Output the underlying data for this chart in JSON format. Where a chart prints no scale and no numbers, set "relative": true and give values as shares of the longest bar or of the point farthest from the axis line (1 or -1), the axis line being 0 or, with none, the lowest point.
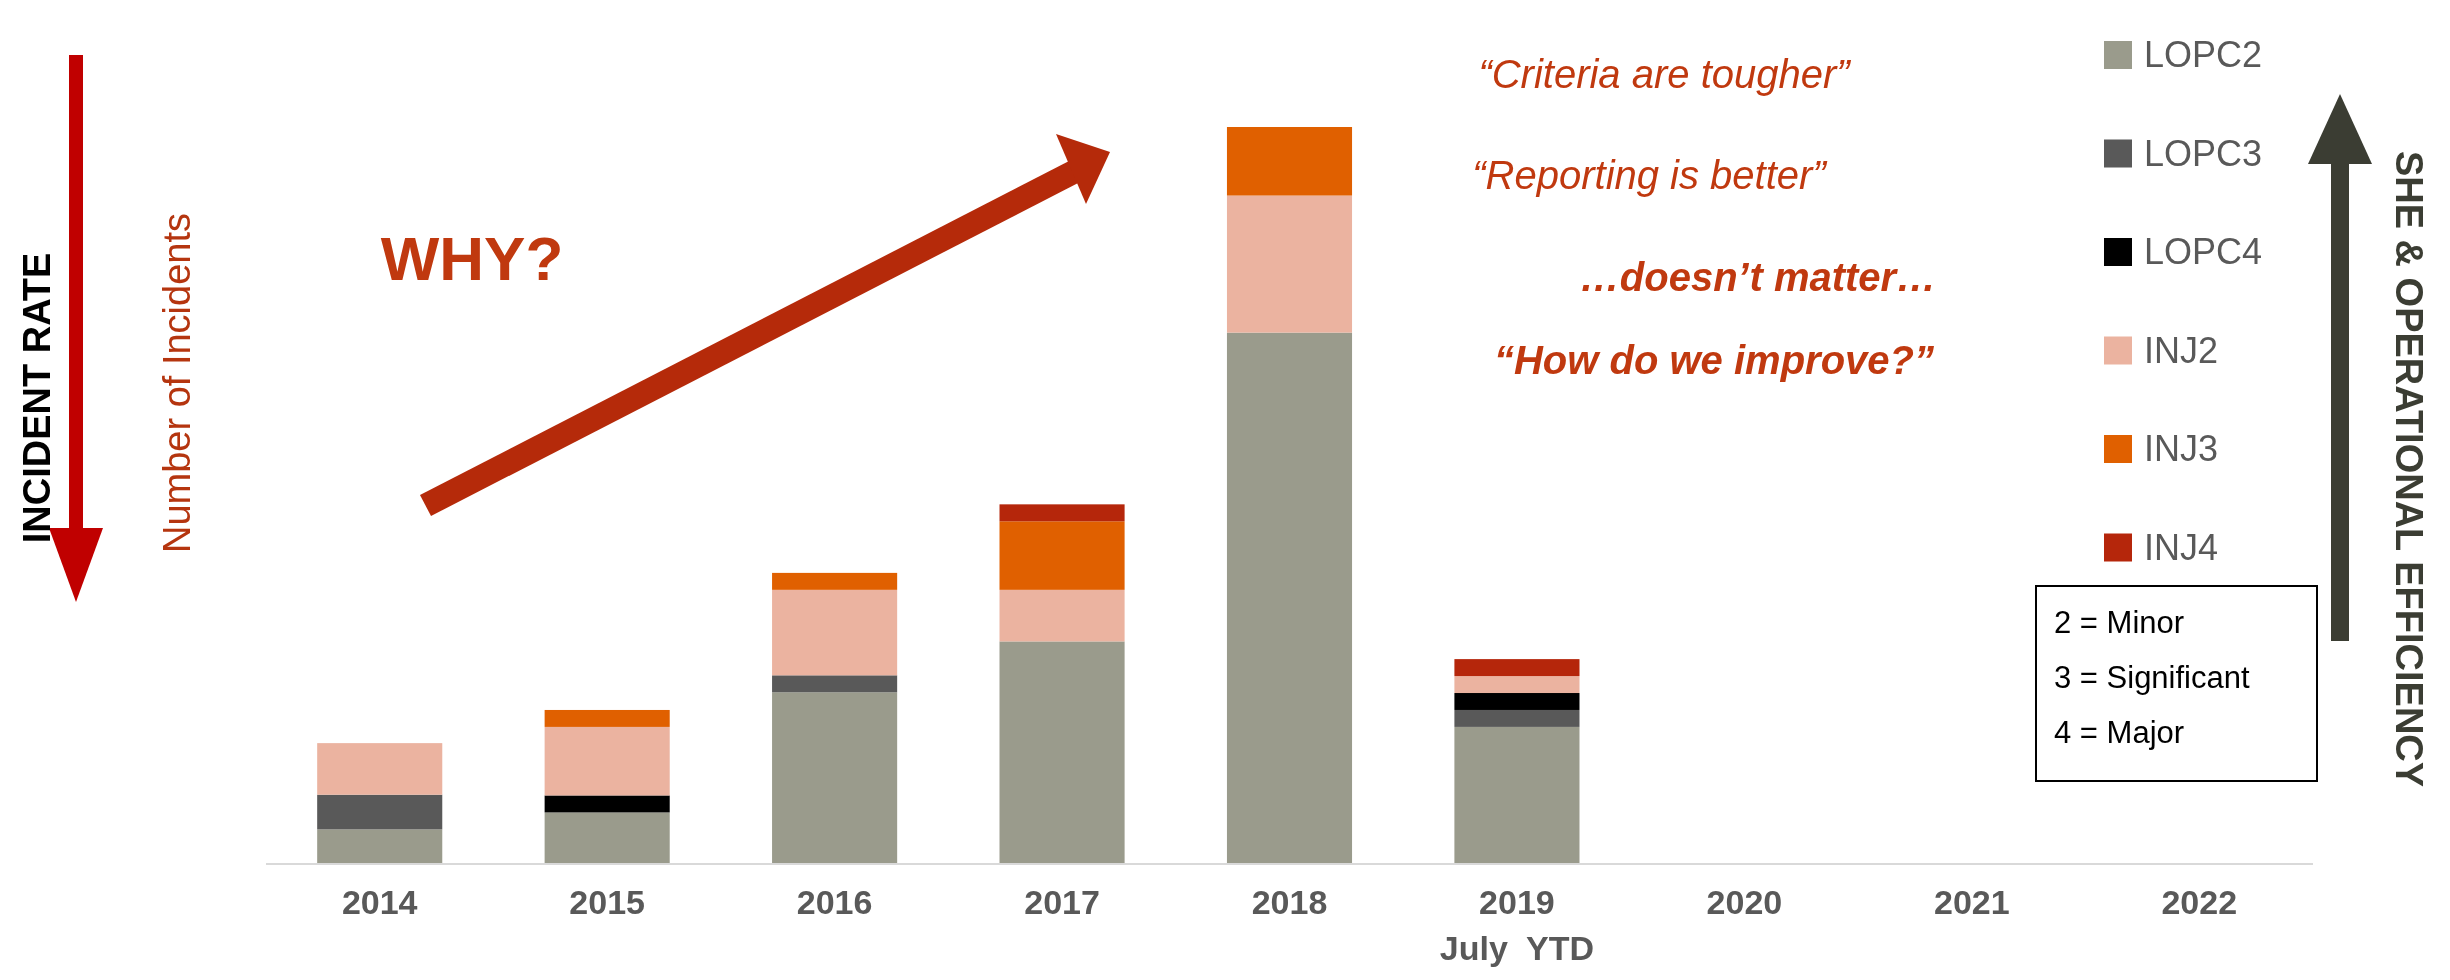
{
  "chart_data": {
    "type": "bar",
    "stacked": true,
    "relative": true,
    "ylabel": "Number of Incidents",
    "categories": [
      "2014",
      "2015",
      "2016",
      "2017",
      "2018",
      "2019\nJuly  YTD",
      "2020",
      "2021",
      "2022"
    ],
    "series": [
      {
        "name": "LOPC2",
        "color": "#9a9b8c",
        "values": [
          0.047,
          0.07,
          0.233,
          0.302,
          0.721,
          0.186,
          null,
          null,
          null
        ]
      },
      {
        "name": "LOPC3",
        "color": "#595959",
        "values": [
          0.047,
          null,
          0.023,
          null,
          null,
          0.023,
          null,
          null,
          null
        ]
      },
      {
        "name": "LOPC4",
        "color": "#000000",
        "values": [
          null,
          0.023,
          null,
          null,
          null,
          0.023,
          null,
          null,
          null
        ]
      },
      {
        "name": "INJ2",
        "color": "#ebb3a0",
        "values": [
          0.07,
          0.093,
          0.116,
          0.07,
          0.186,
          0.023,
          null,
          null,
          null
        ]
      },
      {
        "name": "INJ3",
        "color": "#e06000",
        "values": [
          null,
          0.023,
          0.023,
          0.093,
          0.093,
          null,
          null,
          null,
          null
        ]
      },
      {
        "name": "INJ4",
        "color": "#b5260b",
        "values": [
          null,
          null,
          null,
          0.023,
          null,
          0.023,
          null,
          null,
          null
        ]
      }
    ],
    "legend": "right",
    "annotations": [
      "INCIDENT RATE",
      "SHE & OPERATIONAL EFFICIENCY",
      "WHY?",
      "“Criteria are tougher”",
      "“Reporting is better”",
      "…doesn’t matter…",
      "“How do we improve?”",
      "2 = Minor",
      "3 = Significant",
      "4 = Major"
    ]
  }
}
